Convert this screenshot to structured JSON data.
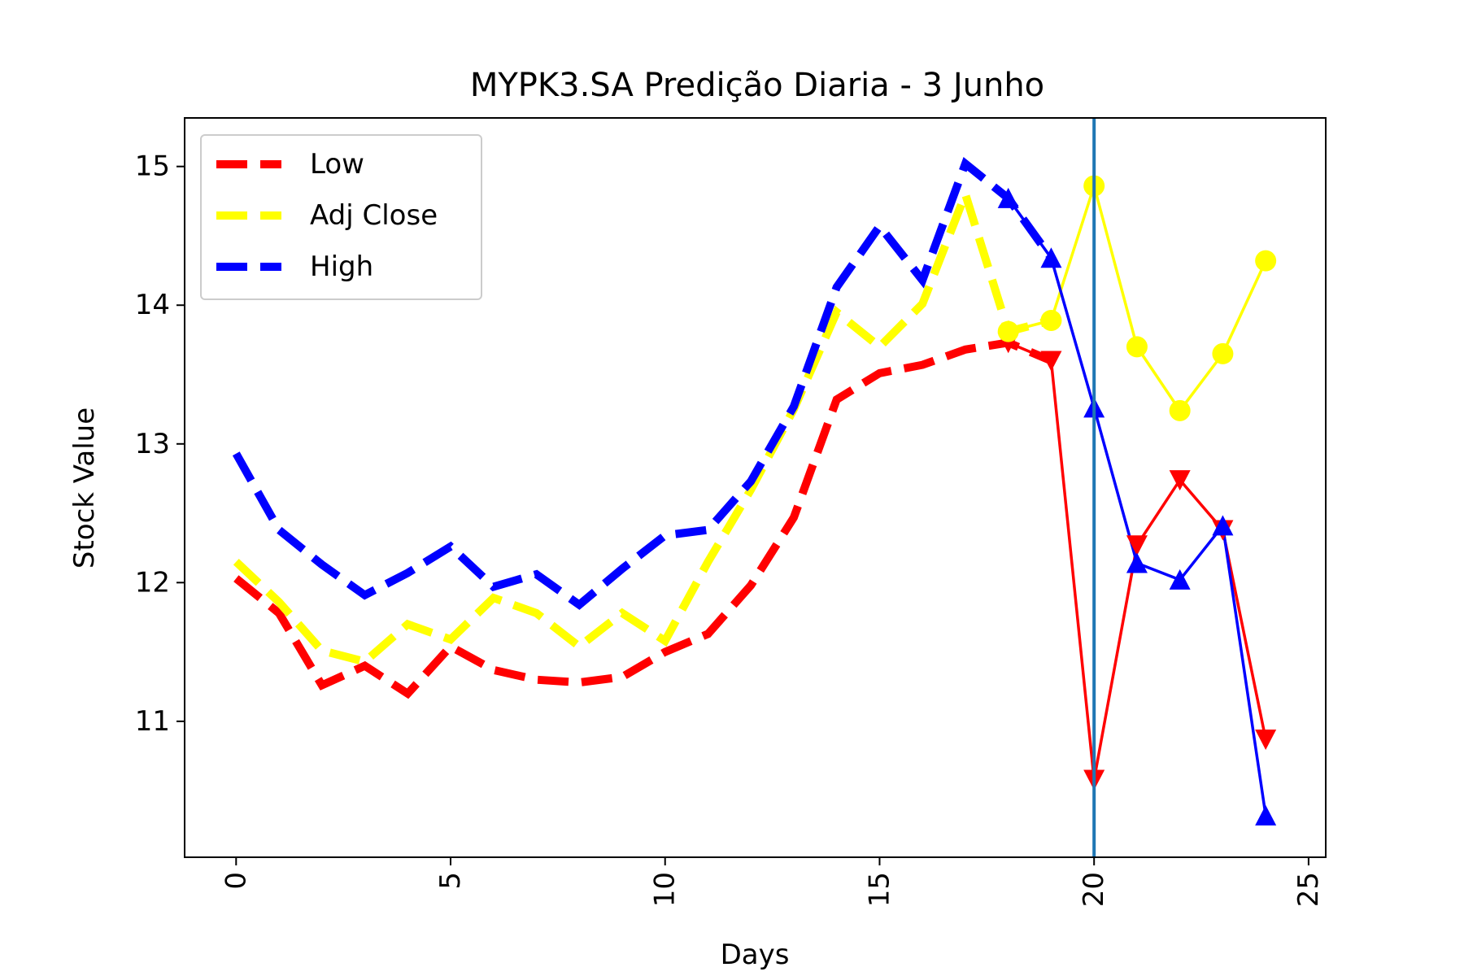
{
  "chart_data": {
    "type": "line",
    "title": "MYPK3.SA Predição Diaria - 3 Junho",
    "xlabel": "Days",
    "ylabel": "Stock Value",
    "xlim": [
      -1.2,
      25.4
    ],
    "ylim": [
      10.02,
      15.35
    ],
    "xticks": [
      0,
      5,
      10,
      15,
      20,
      25
    ],
    "yticks": [
      11,
      12,
      13,
      14,
      15
    ],
    "xtick_labels": [
      "0",
      "5",
      "10",
      "15",
      "20",
      "25"
    ],
    "ytick_labels": [
      "11",
      "12",
      "13",
      "14",
      "15"
    ],
    "grid": false,
    "legend": {
      "placement": "top-left",
      "entries": [
        {
          "label": "Low",
          "color": "#ff0000"
        },
        {
          "label": "Adj Close",
          "color": "#ffff00"
        },
        {
          "label": "High",
          "color": "#0000ff"
        }
      ]
    },
    "vline": {
      "x": 20,
      "color": "#1f77b4"
    },
    "history": {
      "x": [
        0,
        1,
        2,
        3,
        4,
        5,
        6,
        7,
        8,
        9,
        10,
        11,
        12,
        13,
        14,
        15,
        16,
        17,
        18,
        19
      ],
      "series": [
        {
          "name": "Low",
          "color": "#ff0000",
          "values": [
            12.03,
            11.78,
            11.26,
            11.4,
            11.2,
            11.54,
            11.37,
            11.3,
            11.28,
            11.32,
            11.5,
            11.63,
            11.98,
            12.47,
            13.32,
            13.51,
            13.57,
            13.68,
            13.73,
            13.6
          ]
        },
        {
          "name": "Adj Close",
          "color": "#ffff00",
          "values": [
            12.15,
            11.86,
            11.51,
            11.43,
            11.7,
            11.59,
            11.89,
            11.78,
            11.54,
            11.78,
            11.58,
            12.15,
            12.67,
            13.25,
            13.95,
            13.7,
            14.01,
            14.8,
            13.81,
            13.89
          ]
        },
        {
          "name": "High",
          "color": "#0000ff",
          "values": [
            12.93,
            12.38,
            12.13,
            11.91,
            12.07,
            12.26,
            11.97,
            12.06,
            11.84,
            12.1,
            12.34,
            12.38,
            12.73,
            13.27,
            14.13,
            14.57,
            14.18,
            15.02,
            14.77,
            14.34
          ]
        }
      ]
    },
    "prediction": {
      "x": [
        18,
        19,
        20,
        21,
        22,
        23,
        24
      ],
      "series": [
        {
          "name": "Low",
          "color": "#ff0000",
          "marker": "triangle-down",
          "values": [
            13.73,
            13.6,
            10.58,
            12.27,
            12.74,
            12.38,
            10.87
          ]
        },
        {
          "name": "Adj Close",
          "color": "#ffff00",
          "marker": "circle",
          "values": [
            13.81,
            13.89,
            14.86,
            13.7,
            13.24,
            13.65,
            14.32
          ]
        },
        {
          "name": "High",
          "color": "#0000ff",
          "marker": "triangle-up",
          "values": [
            14.77,
            14.34,
            13.26,
            12.14,
            12.02,
            12.41,
            10.32
          ]
        }
      ]
    }
  }
}
